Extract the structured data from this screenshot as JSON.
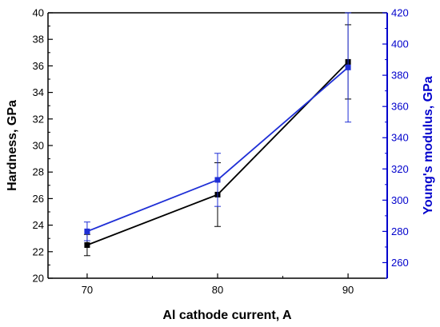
{
  "chart_data": {
    "type": "line",
    "xlabel": "Al cathode current, A",
    "ylabel_left": "Hardness, GPa",
    "ylabel_right": "Young's modulus, GPa",
    "x": [
      70,
      80,
      90
    ],
    "x_ticks": [
      "70",
      "80",
      "90"
    ],
    "xlim": [
      67,
      93
    ],
    "ylim_left": [
      20,
      40
    ],
    "ylim_right": [
      250,
      420
    ],
    "y_ticks_left": [
      "20",
      "22",
      "24",
      "26",
      "28",
      "30",
      "32",
      "34",
      "36",
      "38",
      "40"
    ],
    "y_ticks_right": [
      "260",
      "280",
      "300",
      "320",
      "340",
      "360",
      "380",
      "400",
      "420"
    ],
    "grid": false,
    "left_axis_color": "#000000",
    "right_axis_color": "#0000cc",
    "series": [
      {
        "axis": "left",
        "color": "#000000",
        "values": [
          22.5,
          26.3,
          36.3
        ],
        "error": [
          0.8,
          2.4,
          2.8
        ]
      },
      {
        "axis": "right",
        "color": "#1f2fd6",
        "values": [
          280,
          313,
          385
        ],
        "error": [
          6,
          17,
          35
        ]
      }
    ]
  }
}
